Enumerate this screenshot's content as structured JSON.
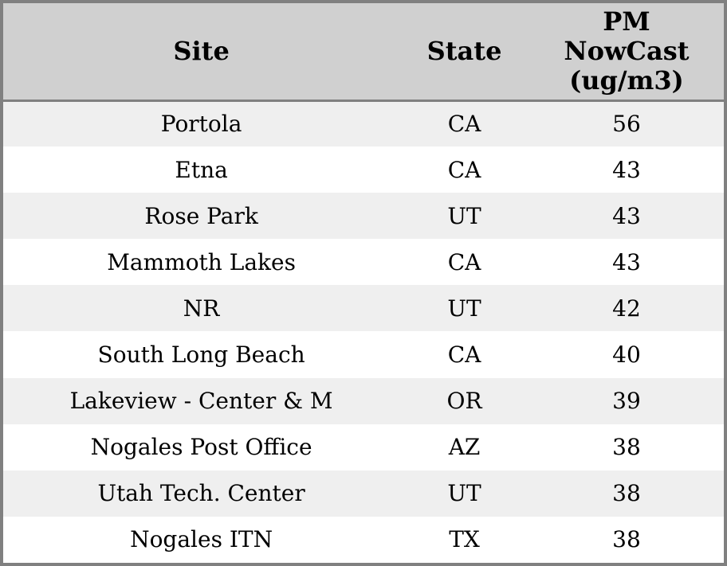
{
  "chart_data": {
    "type": "table",
    "columns": [
      "Site",
      "State",
      "PM NowCast (ug/m3)"
    ],
    "rows": [
      [
        "Portola",
        "CA",
        56
      ],
      [
        "Etna",
        "CA",
        43
      ],
      [
        "Rose Park",
        "UT",
        43
      ],
      [
        "Mammoth Lakes",
        "CA",
        43
      ],
      [
        "NR",
        "UT",
        42
      ],
      [
        "South Long Beach",
        "CA",
        40
      ],
      [
        "Lakeview - Center & M",
        "OR",
        39
      ],
      [
        "Nogales Post Office",
        "AZ",
        38
      ],
      [
        "Utah Tech. Center",
        "UT",
        38
      ],
      [
        "Nogales ITN",
        "TX",
        38
      ]
    ],
    "title": "",
    "layout": {
      "header_position": "top",
      "grid": "horizontal-stripes",
      "value_alignment": "center"
    }
  },
  "header": {
    "site_label": "Site",
    "state_label": "State",
    "pm_label": "PM\nNowCast\n(ug/m3)"
  },
  "colors": {
    "outer_border": "#808080",
    "header_bg": "#d0d0d0",
    "header_rule": "#808080",
    "row_stripe_bg": "#efefef",
    "row_bg": "#ffffff",
    "text": "#000000"
  }
}
